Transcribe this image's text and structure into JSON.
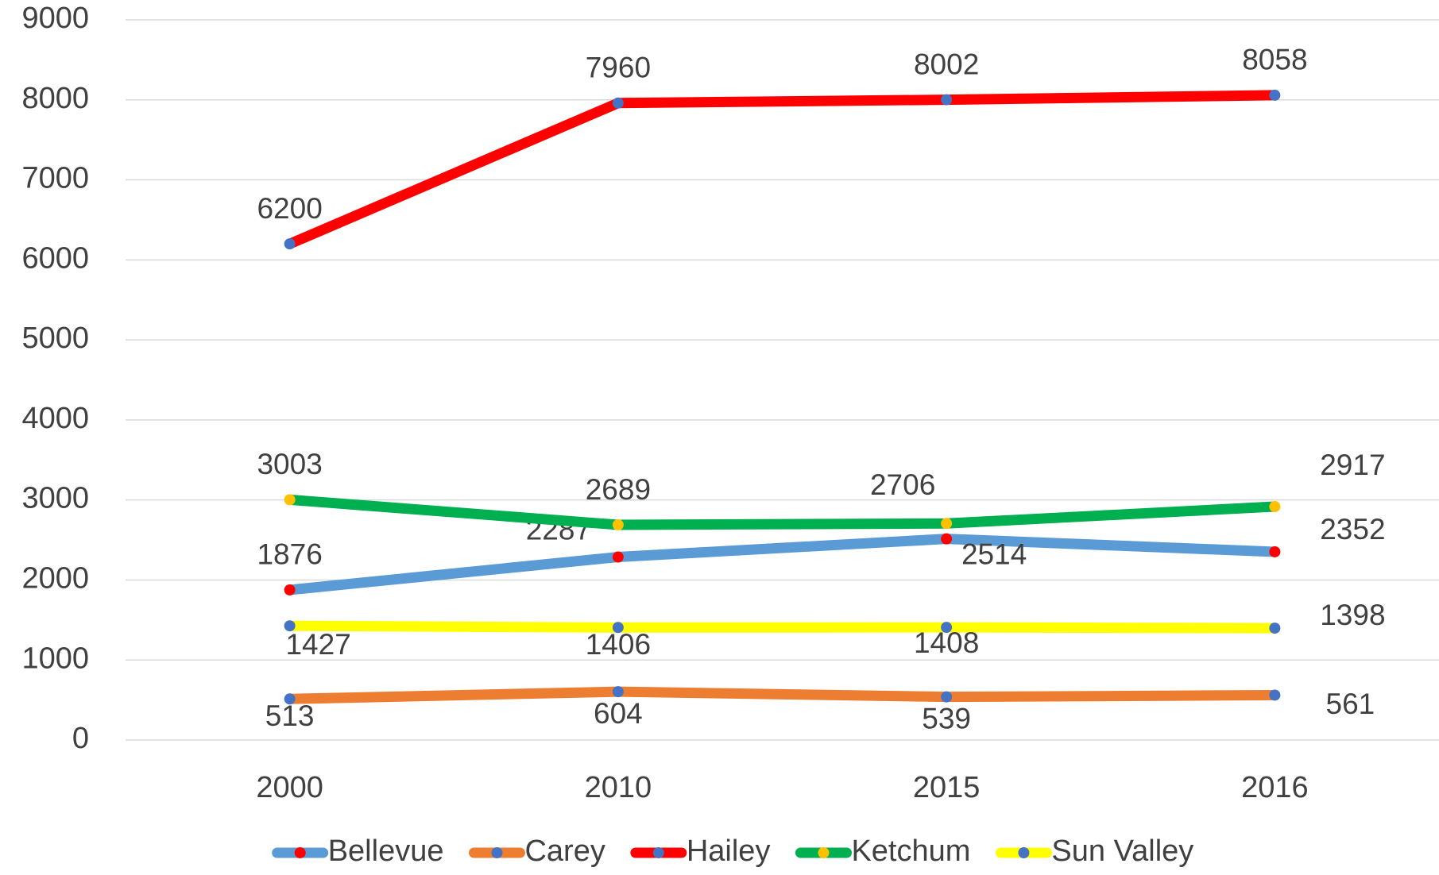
{
  "chart_data": {
    "type": "line",
    "categories": [
      "2000",
      "2010",
      "2015",
      "2016"
    ],
    "series": [
      {
        "name": "Bellevue",
        "color": "#5b9bd5",
        "marker_color": "#ff0000",
        "values": [
          1876,
          2287,
          2514,
          2352
        ]
      },
      {
        "name": "Carey",
        "color": "#ed7d31",
        "marker_color": "#4472c4",
        "values": [
          513,
          604,
          539,
          561
        ]
      },
      {
        "name": "Hailey",
        "color": "#ff0000",
        "marker_color": "#4472c4",
        "values": [
          6200,
          7960,
          8002,
          8058
        ]
      },
      {
        "name": "Ketchum",
        "color": "#00b050",
        "marker_color": "#ffc000",
        "values": [
          3003,
          2689,
          2706,
          2917
        ]
      },
      {
        "name": "Sun Valley",
        "color": "#ffff00",
        "marker_color": "#4472c4",
        "values": [
          1427,
          1406,
          1408,
          1398
        ]
      }
    ],
    "ylim": [
      0,
      9000
    ],
    "yticks": [
      0,
      1000,
      2000,
      3000,
      4000,
      5000,
      6000,
      7000,
      8000,
      9000
    ],
    "grid": true,
    "data_labels": true,
    "legend": "bottom"
  }
}
